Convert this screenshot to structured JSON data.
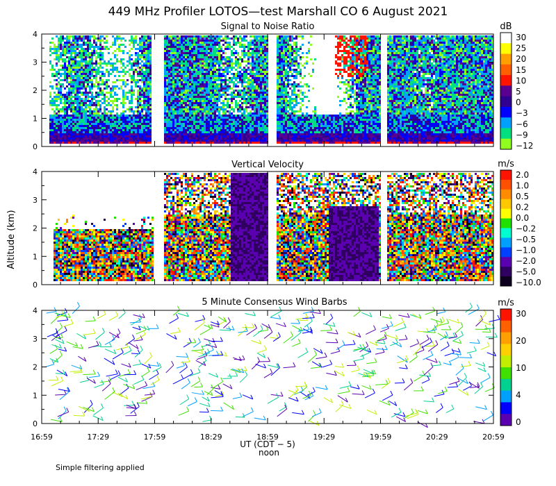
{
  "figure": {
    "title": "449 MHz Profiler LOTOS—test Marshall CO  6 August 2021",
    "xlabel": "UT  (CDT − 5)",
    "xsublabel": "noon",
    "ylabel": "Altitude (km)",
    "x_tick_labels": [
      "16:59",
      "17:29",
      "17:59",
      "18:29",
      "18:59",
      "19:29",
      "19:59",
      "20:29",
      "20:59"
    ],
    "y_tick_labels": [
      "0",
      "1",
      "2",
      "3",
      "4"
    ],
    "footnote": "Simple filtering applied"
  },
  "chart_data": [
    {
      "type": "heatmap",
      "title": "Signal to Noise Ratio",
      "xlabel": "UT  (CDT − 5)",
      "ylabel": "Altitude (km)",
      "xlim": [
        "16:59",
        "20:59"
      ],
      "ylim": [
        0,
        4
      ],
      "colorbar_unit": "dB",
      "colorbar_labels": [
        "30",
        "25",
        "20",
        "15",
        "10",
        "5",
        "0",
        "−3",
        "−6",
        "−9",
        "−12"
      ],
      "colorbar_colors": [
        "#ffffff",
        "#ffff00",
        "#ffa000",
        "#ff6000",
        "#ff1400",
        "#5a0090",
        "#300090",
        "#0000ff",
        "#00a0ff",
        "#00e080",
        "#90ff20"
      ],
      "data_gaps_ut": [
        [
          "17:58",
          "18:03"
        ],
        [
          "18:56",
          "19:01"
        ],
        [
          "19:55",
          "20:00"
        ]
      ]
    },
    {
      "type": "heatmap",
      "title": "Vertical Velocity",
      "xlim": [
        "16:59",
        "20:59"
      ],
      "ylim": [
        0,
        4
      ],
      "colorbar_unit": "m/s",
      "colorbar_labels": [
        "2.0",
        "1.0",
        "0.5",
        "0.2",
        "0.0",
        "−0.2",
        "−0.5",
        "−1.0",
        "−2.0",
        "−5.0",
        "−10.0"
      ],
      "colorbar_colors": [
        "#ff1400",
        "#ff5000",
        "#ff8c00",
        "#ffc800",
        "#ffff00",
        "#20e000",
        "#00ffd0",
        "#00a0ff",
        "#0040ff",
        "#5a00b0",
        "#300060",
        "#100020"
      ],
      "data_gaps_ut": [
        [
          "17:58",
          "18:03"
        ],
        [
          "18:56",
          "19:01"
        ],
        [
          "19:55",
          "20:00"
        ]
      ]
    },
    {
      "type": "scatter",
      "title": "5 Minute Consensus Wind Barbs",
      "xlim": [
        "16:59",
        "20:59"
      ],
      "ylim": [
        0,
        4
      ],
      "colorbar_unit": "m/s",
      "colorbar_labels": [
        "30",
        "20",
        "10",
        "4",
        "0"
      ],
      "colorbar_colors": [
        "#ff1400",
        "#ff6000",
        "#ffa000",
        "#ffd000",
        "#c0f000",
        "#40e000",
        "#00d090",
        "#00a0ff",
        "#0000ff",
        "#5a00b0"
      ]
    }
  ]
}
